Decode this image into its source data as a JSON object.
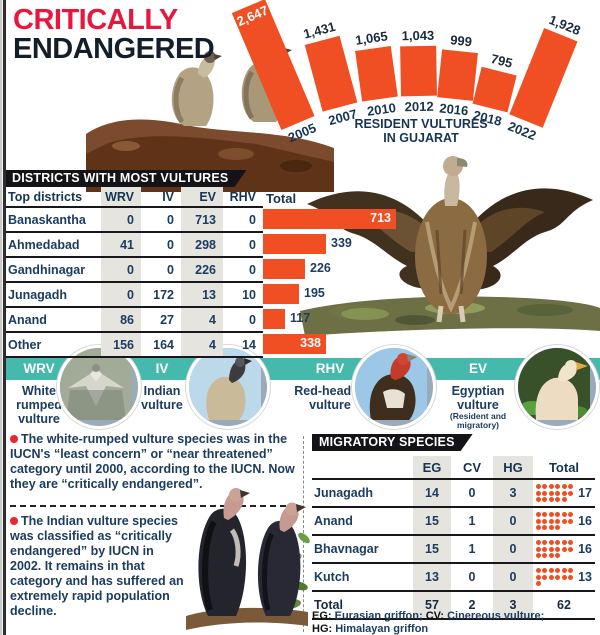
{
  "colors": {
    "orange": "#f04e23",
    "teal": "#45b9ab",
    "navy": "#1c3c60",
    "red": "#e8173d",
    "banner_black": "#131318"
  },
  "header": {
    "title_line1": "CRITICALLY",
    "title_line2": "ENDANGERED"
  },
  "chart_data": [
    {
      "type": "bar",
      "name": "resident-vultures-fan-chart",
      "title": "RESIDENT VULTURES IN GUJARAT",
      "categories": [
        "2005",
        "2007",
        "2010",
        "2012",
        "2016",
        "2018",
        "2022"
      ],
      "values": [
        2647,
        1431,
        1065,
        1043,
        999,
        795,
        1928
      ],
      "value_labels": [
        "2,647",
        "1,431",
        "1,065",
        "1,043",
        "999",
        "795",
        "1,928"
      ],
      "layout": {
        "fan": true,
        "angles_deg": [
          -23,
          -15,
          -8,
          -1,
          6,
          14,
          22
        ],
        "value_label_inside": [
          true,
          false,
          false,
          false,
          false,
          false,
          false
        ],
        "bar_color": "#f04e23"
      }
    },
    {
      "type": "table",
      "name": "districts-with-most-vultures",
      "title": "DISTRICTS WITH MOST VULTURES",
      "columns": [
        "Top districts",
        "WRV",
        "IV",
        "EV",
        "RHV",
        "Total"
      ],
      "rows": [
        [
          "Banaskantha",
          0,
          0,
          713,
          0,
          713
        ],
        [
          "Ahmedabad",
          41,
          0,
          298,
          0,
          339
        ],
        [
          "Gandhinagar",
          0,
          0,
          226,
          0,
          226
        ],
        [
          "Junagadh",
          0,
          172,
          13,
          10,
          195
        ],
        [
          "Anand",
          86,
          27,
          4,
          0,
          117
        ],
        [
          "Other",
          156,
          164,
          4,
          14,
          338
        ]
      ],
      "total_bar": {
        "type": "bar",
        "orientation": "horizontal",
        "values": [
          713,
          339,
          226,
          195,
          117,
          338
        ],
        "label_inside": [
          true,
          false,
          false,
          false,
          false,
          true
        ],
        "bar_color": "#f04e23"
      }
    },
    {
      "type": "table",
      "name": "migratory-species",
      "title": "MIGRATORY SPECIES",
      "columns": [
        "",
        "EG",
        "CV",
        "HG",
        "Total"
      ],
      "rows": [
        [
          "Junagadh",
          14,
          0,
          3,
          17
        ],
        [
          "Anand",
          15,
          1,
          0,
          16
        ],
        [
          "Bhavnagar",
          15,
          1,
          0,
          16
        ],
        [
          "Kutch",
          13,
          0,
          0,
          13
        ]
      ],
      "total_row": [
        "Total",
        57,
        2,
        3,
        62
      ],
      "footnote_lines": [
        [
          {
            "key": "EG:",
            "text": "Eurasian griffon;"
          },
          {
            "key": "CV:",
            "text": "Cinereous vulture;"
          }
        ],
        [
          {
            "key": "HG:",
            "text": "Himalayan griffon"
          }
        ]
      ]
    }
  ],
  "species_strip": {
    "items": [
      {
        "code": "WRV",
        "name": "White rumped vulture",
        "note": ""
      },
      {
        "code": "IV",
        "name": "Indian vulture",
        "note": ""
      },
      {
        "code": "RHV",
        "name": "Red-headed vulture",
        "note": ""
      },
      {
        "code": "EV",
        "name": "Egyptian vulture",
        "note": "(Resident and migratory)"
      }
    ]
  },
  "notes": [
    "The white-rumped vulture species was in the IUCN's “least concern” or “near threatened” category until 2000, according to the IUCN. Now they are “critically endangered”.",
    "The Indian vulture species was classified as “critically endangered” by IUCN in 2002. It remains in that category and has suffered an extremely rapid population decline."
  ]
}
